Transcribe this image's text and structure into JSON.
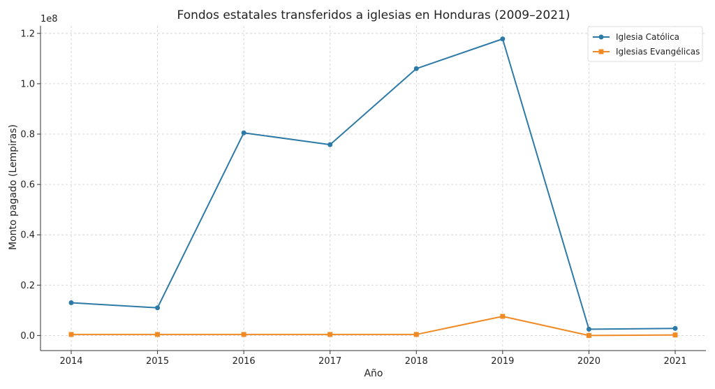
{
  "chart_data": {
    "type": "line",
    "title": "Fondos estatales transferidos a iglesias en Honduras (2009–2021)",
    "xlabel": "Año",
    "ylabel": "Monto pagado (Lempiras)",
    "y_exponent_label": "1e8",
    "categories": [
      "2014",
      "2015",
      "2016",
      "2017",
      "2018",
      "2019",
      "2020",
      "2021"
    ],
    "y_ticks": [
      "0.0",
      "0.2",
      "0.4",
      "0.6",
      "0.8",
      "1.0",
      "1.2"
    ],
    "ylim": [
      -0.06,
      1.23
    ],
    "y_unit_note": "values in units of 1e8 Lempiras",
    "grid": true,
    "legend_position": "top-right",
    "series": [
      {
        "name": "Iglesia Católica",
        "color": "#2e7aa6",
        "marker": "circle",
        "values": [
          0.13,
          0.11,
          0.805,
          0.758,
          1.06,
          1.178,
          0.025,
          0.028
        ]
      },
      {
        "name": "Iglesias Evangélicas",
        "color": "#f08a24",
        "marker": "square",
        "values": [
          0.004,
          0.004,
          0.004,
          0.004,
          0.004,
          0.076,
          0.0,
          0.002
        ]
      }
    ]
  }
}
